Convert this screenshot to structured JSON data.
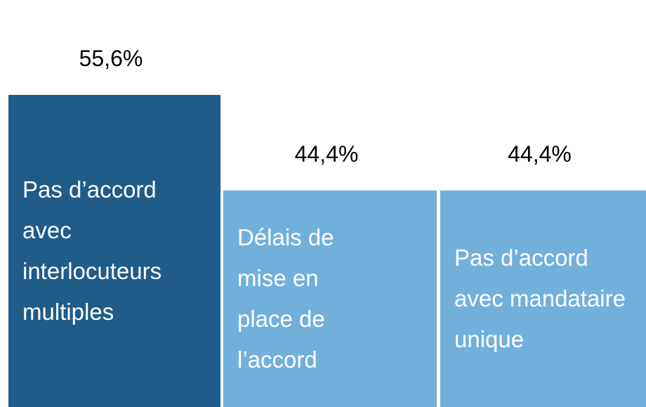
{
  "chart_data": {
    "type": "bar",
    "categories": [
      "Pas d’accord avec interlocuteurs multiples",
      "Délais de mise en place de l’accord",
      "Pas d’accord avec mandataire unique"
    ],
    "values": [
      55.6,
      44.4,
      44.4
    ],
    "value_labels": [
      "55,6%",
      "44,4%",
      "44,4%"
    ],
    "colors": [
      "#1f5c8a",
      "#72b0dc",
      "#72b0dc"
    ],
    "ylim": [
      19,
      66.7
    ]
  }
}
